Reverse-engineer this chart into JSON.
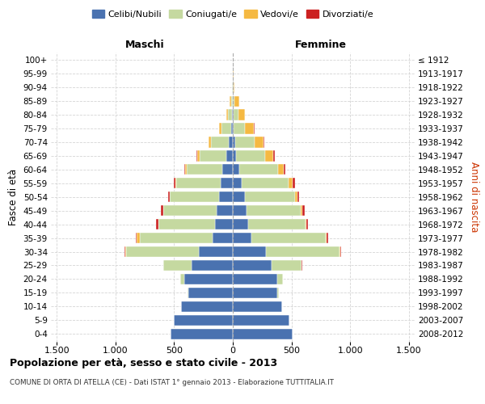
{
  "age_groups": [
    "0-4",
    "5-9",
    "10-14",
    "15-19",
    "20-24",
    "25-29",
    "30-34",
    "35-39",
    "40-44",
    "45-49",
    "50-54",
    "55-59",
    "60-64",
    "65-69",
    "70-74",
    "75-79",
    "80-84",
    "85-89",
    "90-94",
    "95-99",
    "100+"
  ],
  "birth_years": [
    "2008-2012",
    "2003-2007",
    "1998-2002",
    "1993-1997",
    "1988-1992",
    "1983-1987",
    "1978-1982",
    "1973-1977",
    "1968-1972",
    "1963-1967",
    "1958-1962",
    "1953-1957",
    "1948-1952",
    "1943-1947",
    "1938-1942",
    "1933-1937",
    "1928-1932",
    "1923-1927",
    "1918-1922",
    "1913-1917",
    "≤ 1912"
  ],
  "males": {
    "celibi": [
      530,
      500,
      440,
      380,
      410,
      350,
      290,
      170,
      155,
      140,
      115,
      100,
      90,
      55,
      35,
      15,
      5,
      2,
      0,
      0,
      0
    ],
    "coniugati": [
      0,
      0,
      2,
      5,
      40,
      240,
      620,
      620,
      480,
      450,
      420,
      380,
      300,
      230,
      150,
      80,
      35,
      15,
      5,
      0,
      0
    ],
    "vedovi": [
      0,
      0,
      0,
      0,
      0,
      0,
      5,
      30,
      0,
      0,
      5,
      10,
      15,
      20,
      20,
      20,
      15,
      10,
      0,
      0,
      0
    ],
    "divorziati": [
      0,
      0,
      0,
      0,
      0,
      0,
      5,
      5,
      20,
      20,
      10,
      15,
      10,
      5,
      5,
      5,
      0,
      0,
      0,
      0,
      0
    ]
  },
  "females": {
    "nubili": [
      510,
      480,
      420,
      380,
      380,
      330,
      285,
      155,
      130,
      120,
      100,
      75,
      55,
      30,
      20,
      10,
      5,
      2,
      0,
      0,
      0
    ],
    "coniugate": [
      0,
      0,
      2,
      10,
      50,
      255,
      625,
      640,
      490,
      460,
      430,
      400,
      330,
      245,
      165,
      90,
      40,
      15,
      5,
      2,
      0
    ],
    "vedove": [
      0,
      0,
      0,
      0,
      0,
      0,
      5,
      5,
      5,
      10,
      20,
      35,
      50,
      70,
      80,
      80,
      60,
      40,
      10,
      2,
      0
    ],
    "divorziate": [
      0,
      0,
      0,
      0,
      0,
      5,
      10,
      10,
      15,
      20,
      15,
      20,
      15,
      10,
      5,
      5,
      0,
      0,
      0,
      0,
      0
    ]
  },
  "colors": {
    "celibi": "#4a72b0",
    "coniugati": "#c5d9a0",
    "vedovi": "#f5b942",
    "divorziati": "#cc2020"
  },
  "title": "Popolazione per età, sesso e stato civile - 2013",
  "subtitle": "COMUNE DI ORTA DI ATELLA (CE) - Dati ISTAT 1° gennaio 2013 - Elaborazione TUTTITALIA.IT",
  "label_maschi": "Maschi",
  "label_femmine": "Femmine",
  "ylabel_left": "Fasce di età",
  "ylabel_right": "Anni di nascita",
  "legend_labels": [
    "Celibi/Nubili",
    "Coniugati/e",
    "Vedovi/e",
    "Divorziati/e"
  ],
  "xlim": 1550,
  "xtick_vals": [
    -1500,
    -1000,
    -500,
    0,
    500,
    1000,
    1500
  ],
  "xtick_labels": [
    "1.500",
    "1.000",
    "500",
    "0",
    "500",
    "1.000",
    "1.500"
  ],
  "bg_color": "#ffffff",
  "grid_color": "#d0d0d0"
}
